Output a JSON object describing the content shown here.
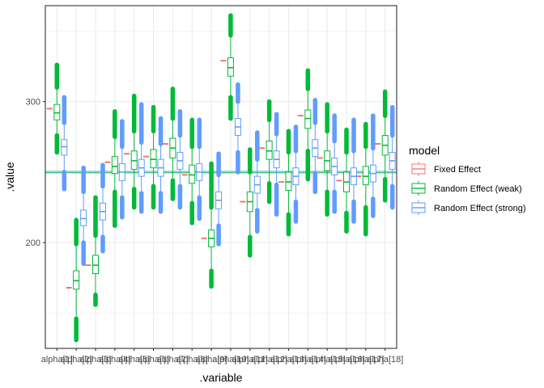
{
  "chart_data": {
    "type": "boxplot",
    "xlabel": ".variable",
    "ylabel": ".value",
    "ylim": [
      125,
      368
    ],
    "yticks": [
      200,
      300
    ],
    "grid": true,
    "legend_position": "right",
    "legend": {
      "title": "model",
      "entries": [
        {
          "name": "Fixed Effect",
          "color": "#F8766D"
        },
        {
          "name": "Random Effect (weak)",
          "color": "#00BA38"
        },
        {
          "name": "Random Effect (strong)",
          "color": "#619CFF"
        }
      ]
    },
    "categories": [
      "alpha[1]",
      "alpha[2]",
      "alpha[3]",
      "alpha[4]",
      "alpha[5]",
      "alpha[6]",
      "alpha[7]",
      "alpha[8]",
      "alpha[9]",
      "alpha[10]",
      "alpha[11]",
      "alpha[12]",
      "alpha[13]",
      "alpha[14]",
      "alpha[15]",
      "alpha[16]",
      "alpha[17]",
      "alpha[18]"
    ],
    "hlines": [
      {
        "model": "Random Effect (weak)",
        "value": 249.5,
        "color": "#00BA38"
      },
      {
        "model": "Random Effect (strong)",
        "value": 250.5,
        "color": "#619CFF"
      }
    ],
    "series": [
      {
        "name": "Fixed Effect",
        "color": "#F8766D",
        "values": [
          295,
          168,
          184,
          257,
          263,
          261,
          270,
          248,
          203,
          329,
          229,
          267,
          243,
          290,
          260,
          244,
          247,
          270
        ]
      },
      {
        "name": "Random Effect (weak)",
        "color": "#00BA38",
        "boxes": [
          {
            "lo": 276,
            "q1": 287,
            "med": 292,
            "q3": 298,
            "hi": 310,
            "omin": 264,
            "omax": 326
          },
          {
            "lo": 146,
            "q1": 167,
            "med": 173,
            "q3": 180,
            "hi": 199,
            "omin": 131,
            "omax": 216
          },
          {
            "lo": 163,
            "q1": 178,
            "med": 184,
            "q3": 191,
            "hi": 205,
            "omin": 156,
            "omax": 232
          },
          {
            "lo": 236,
            "q1": 249,
            "med": 254,
            "q3": 261,
            "hi": 275,
            "omin": 212,
            "omax": 293
          },
          {
            "lo": 238,
            "q1": 252,
            "med": 258,
            "q3": 265,
            "hi": 279,
            "omin": 225,
            "omax": 304
          },
          {
            "lo": 240,
            "q1": 253,
            "med": 259,
            "q3": 266,
            "hi": 279,
            "omin": 225,
            "omax": 296
          },
          {
            "lo": 244,
            "q1": 260,
            "med": 267,
            "q3": 274,
            "hi": 288,
            "omin": 231,
            "omax": 309
          },
          {
            "lo": 228,
            "q1": 242,
            "med": 248,
            "q3": 255,
            "hi": 268,
            "omin": 214,
            "omax": 287
          },
          {
            "lo": 180,
            "q1": 197,
            "med": 203,
            "q3": 209,
            "hi": 225,
            "omin": 169,
            "omax": 256
          },
          {
            "lo": 303,
            "q1": 318,
            "med": 324,
            "q3": 331,
            "hi": 347,
            "omin": 288,
            "omax": 361
          },
          {
            "lo": 204,
            "q1": 222,
            "med": 229,
            "q3": 236,
            "hi": 250,
            "omin": 191,
            "omax": 266
          },
          {
            "lo": 242,
            "q1": 259,
            "med": 265,
            "q3": 272,
            "hi": 287,
            "omin": 229,
            "omax": 300
          },
          {
            "lo": 220,
            "q1": 237,
            "med": 243,
            "q3": 250,
            "hi": 264,
            "omin": 206,
            "omax": 279
          },
          {
            "lo": 265,
            "q1": 281,
            "med": 288,
            "q3": 294,
            "hi": 309,
            "omin": 245,
            "omax": 322
          },
          {
            "lo": 236,
            "q1": 251,
            "med": 258,
            "q3": 265,
            "hi": 279,
            "omin": 220,
            "omax": 298
          },
          {
            "lo": 221,
            "q1": 236,
            "med": 243,
            "q3": 250,
            "hi": 264,
            "omin": 208,
            "omax": 280
          },
          {
            "lo": 225,
            "q1": 241,
            "med": 247,
            "q3": 254,
            "hi": 268,
            "omin": 206,
            "omax": 284
          },
          {
            "lo": 245,
            "q1": 262,
            "med": 269,
            "q3": 276,
            "hi": 290,
            "omin": 230,
            "omax": 307
          }
        ]
      },
      {
        "name": "Random Effect (strong)",
        "color": "#619CFF",
        "boxes": [
          {
            "lo": 250,
            "q1": 262,
            "med": 268,
            "q3": 273,
            "hi": 285,
            "omin": 238,
            "omax": 303
          },
          {
            "lo": 200,
            "q1": 212,
            "med": 217,
            "q3": 223,
            "hi": 236,
            "omin": 185,
            "omax": 253
          },
          {
            "lo": 204,
            "q1": 216,
            "med": 222,
            "q3": 228,
            "hi": 240,
            "omin": 194,
            "omax": 255
          },
          {
            "lo": 232,
            "q1": 244,
            "med": 250,
            "q3": 256,
            "hi": 268,
            "omin": 218,
            "omax": 286
          },
          {
            "lo": 235,
            "q1": 247,
            "med": 253,
            "q3": 259,
            "hi": 271,
            "omin": 222,
            "omax": 298
          },
          {
            "lo": 235,
            "q1": 247,
            "med": 253,
            "q3": 259,
            "hi": 270,
            "omin": 222,
            "omax": 288
          },
          {
            "lo": 240,
            "q1": 252,
            "med": 258,
            "q3": 264,
            "hi": 276,
            "omin": 225,
            "omax": 293
          },
          {
            "lo": 232,
            "q1": 244,
            "med": 250,
            "q3": 256,
            "hi": 268,
            "omin": 217,
            "omax": 287
          },
          {
            "lo": 212,
            "q1": 224,
            "med": 230,
            "q3": 236,
            "hi": 248,
            "omin": 199,
            "omax": 263
          },
          {
            "lo": 264,
            "q1": 276,
            "med": 282,
            "q3": 288,
            "hi": 300,
            "omin": 250,
            "omax": 312
          },
          {
            "lo": 223,
            "q1": 235,
            "med": 241,
            "q3": 247,
            "hi": 259,
            "omin": 208,
            "omax": 278
          },
          {
            "lo": 241,
            "q1": 253,
            "med": 259,
            "q3": 265,
            "hi": 277,
            "omin": 220,
            "omax": 291
          },
          {
            "lo": 229,
            "q1": 241,
            "med": 247,
            "q3": 253,
            "hi": 265,
            "omin": 215,
            "omax": 282
          },
          {
            "lo": 249,
            "q1": 261,
            "med": 267,
            "q3": 273,
            "hi": 285,
            "omin": 236,
            "omax": 301
          },
          {
            "lo": 236,
            "q1": 248,
            "med": 254,
            "q3": 260,
            "hi": 272,
            "omin": 222,
            "omax": 290
          },
          {
            "lo": 229,
            "q1": 241,
            "med": 247,
            "q3": 253,
            "hi": 265,
            "omin": 215,
            "omax": 287
          },
          {
            "lo": 231,
            "q1": 243,
            "med": 249,
            "q3": 255,
            "hi": 267,
            "omin": 219,
            "omax": 290
          },
          {
            "lo": 240,
            "q1": 252,
            "med": 258,
            "q3": 264,
            "hi": 276,
            "omin": 225,
            "omax": 296
          }
        ]
      }
    ]
  }
}
